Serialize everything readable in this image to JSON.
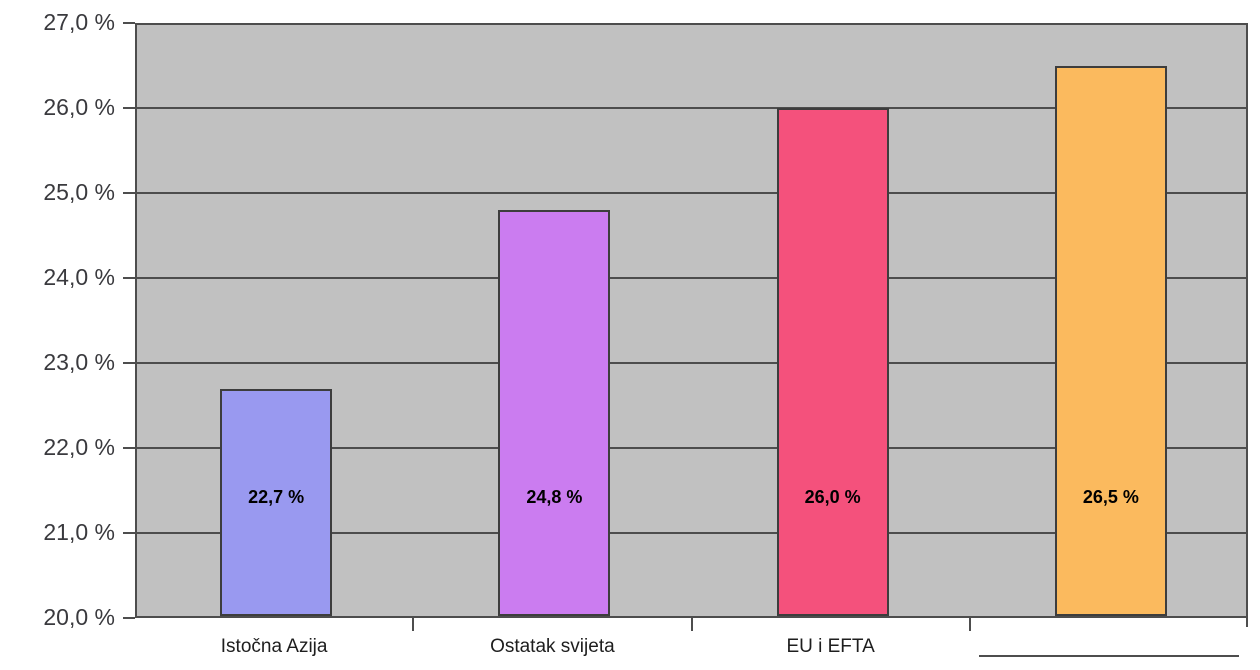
{
  "chart_data": {
    "type": "bar",
    "title": "",
    "xlabel": "",
    "ylabel": "",
    "categories": [
      "Istočna Azija",
      "Ostatak svijeta",
      "EU i EFTA",
      ""
    ],
    "values": [
      22.7,
      24.8,
      26.0,
      26.5
    ],
    "value_labels": [
      "22,7 %",
      "24,8 %",
      "26,0 %",
      "26,5 %"
    ],
    "bar_colors": [
      "#9999f0",
      "#cb7cf0",
      "#f4517c",
      "#fbba5e"
    ],
    "bar_border_color": "#3d3d3d",
    "ylim": [
      20,
      27
    ],
    "ytick_step": 1,
    "ytick_labels": [
      "20,0 %",
      "21,0 %",
      "22,0 %",
      "23,0 %",
      "24,0 %",
      "25,0 %",
      "26,0 %",
      "27,0 %"
    ],
    "grid": true,
    "legend": "none",
    "plot_background": "#c1c1c1",
    "axis_color": "#4d4d4d",
    "fourth_category_label_style": "blank-underline"
  }
}
